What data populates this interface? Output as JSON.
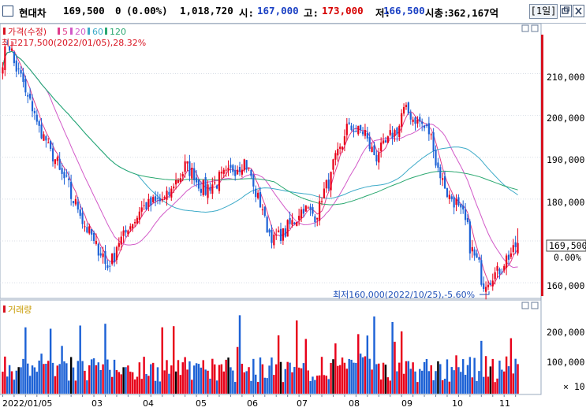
{
  "header": {
    "name": "현대차",
    "price": "169,500",
    "change": "0",
    "change_pct": "(0.00%)",
    "volume": "1,018,720",
    "open_label": "시:",
    "open": "167,000",
    "high_label": "고:",
    "high": "173,000",
    "low_label": "저:",
    "low": "166,500",
    "mcap_label": "시총:",
    "mcap": "362,167억",
    "period": "[1일]"
  },
  "legend": {
    "price_label": "가격(수정)",
    "ma": [
      {
        "label": "5",
        "color": "#e03c8c"
      },
      {
        "label": "20",
        "color": "#d25ac8"
      },
      {
        "label": "60",
        "color": "#3caac8"
      },
      {
        "label": "120",
        "color": "#2aa870"
      }
    ],
    "volume_label": "거래량"
  },
  "annotations": {
    "max": "최고217,500(2022/01/05),28.32%",
    "min": "최저160,000(2022/10/25),-5.60%"
  },
  "price_axis": {
    "ticks": [
      "210,000",
      "200,000",
      "190,000",
      "180,000",
      "160,000"
    ],
    "current_tag": "169,500",
    "current_pct": "0.00%"
  },
  "volume_axis": {
    "ticks": [
      "200,000",
      "100,000"
    ],
    "multiplier": "× 10"
  },
  "date_labels": [
    "2022/01/05",
    "03",
    "04",
    "05",
    "06",
    "07",
    "08",
    "09",
    "10",
    "11"
  ],
  "colors": {
    "up": "#e8001a",
    "down": "#1d62d6",
    "neutral": "#000000",
    "axis_text": "#000000",
    "grid": "#d8dde6"
  },
  "chart_data": {
    "type": "candlestick",
    "title": "현대차",
    "price_ylim": [
      157000,
      221000
    ],
    "volume_ylim": [
      0,
      2900000
    ],
    "x_range": [
      "2022-01-03",
      "2022-11-15"
    ],
    "anchors": [
      {
        "date": "2022-01-03",
        "close": 213000
      },
      {
        "date": "2022-01-05",
        "close": 217500
      },
      {
        "date": "2022-01-14",
        "close": 208000
      },
      {
        "date": "2022-01-27",
        "close": 195000
      },
      {
        "date": "2022-02-10",
        "close": 184000
      },
      {
        "date": "2022-02-24",
        "close": 172000
      },
      {
        "date": "2022-03-08",
        "close": 164000
      },
      {
        "date": "2022-03-15",
        "close": 170000
      },
      {
        "date": "2022-03-29",
        "close": 178000
      },
      {
        "date": "2022-04-12",
        "close": 180000
      },
      {
        "date": "2022-04-25",
        "close": 188000
      },
      {
        "date": "2022-05-06",
        "close": 182000
      },
      {
        "date": "2022-05-20",
        "close": 186000
      },
      {
        "date": "2022-05-31",
        "close": 189000
      },
      {
        "date": "2022-06-10",
        "close": 178000
      },
      {
        "date": "2022-06-17",
        "close": 170000
      },
      {
        "date": "2022-06-24",
        "close": 172000
      },
      {
        "date": "2022-07-06",
        "close": 178000
      },
      {
        "date": "2022-07-13",
        "close": 176000
      },
      {
        "date": "2022-07-22",
        "close": 185000
      },
      {
        "date": "2022-08-02",
        "close": 197000
      },
      {
        "date": "2022-08-12",
        "close": 196000
      },
      {
        "date": "2022-08-19",
        "close": 190000
      },
      {
        "date": "2022-08-31",
        "close": 196000
      },
      {
        "date": "2022-09-06",
        "close": 201000
      },
      {
        "date": "2022-09-13",
        "close": 199000
      },
      {
        "date": "2022-09-21",
        "close": 196000
      },
      {
        "date": "2022-09-30",
        "close": 183000
      },
      {
        "date": "2022-10-12",
        "close": 176000
      },
      {
        "date": "2022-10-19",
        "close": 166000
      },
      {
        "date": "2022-10-25",
        "close": 160000
      },
      {
        "date": "2022-11-03",
        "close": 163000
      },
      {
        "date": "2022-11-10",
        "close": 167000
      },
      {
        "date": "2022-11-15",
        "close": 169500
      }
    ],
    "ma_periods": [
      5,
      20,
      60,
      120
    ],
    "max_point": {
      "date": "2022-01-05",
      "value": 217500,
      "pct": 28.32
    },
    "min_point": {
      "date": "2022-10-25",
      "value": 160000,
      "pct": -5.6
    },
    "last": {
      "date": "2022-11-15",
      "open": 167000,
      "high": 173000,
      "low": 166500,
      "close": 169500,
      "volume": 1018720
    }
  }
}
